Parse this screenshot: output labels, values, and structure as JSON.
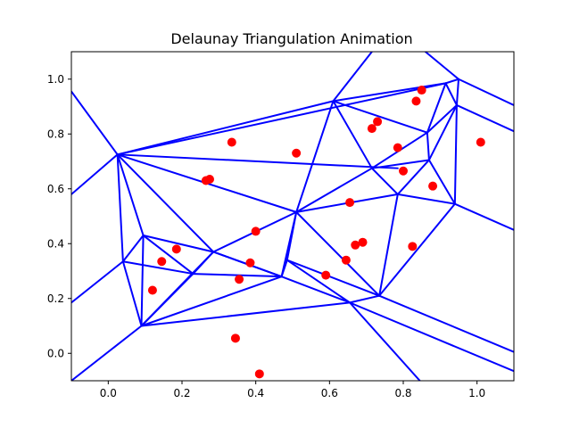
{
  "chart_data": {
    "type": "scatter",
    "title": "Delaunay Triangulation Animation",
    "xlabel": "",
    "ylabel": "",
    "xlim": [
      -0.1,
      1.1
    ],
    "ylim": [
      -0.1,
      1.1
    ],
    "grid": false,
    "xticks": [
      "0.0",
      "0.2",
      "0.4",
      "0.6",
      "0.8",
      "1.0"
    ],
    "xtick_values": [
      0.0,
      0.2,
      0.4,
      0.6,
      0.8,
      1.0
    ],
    "yticks": [
      "0.0",
      "0.2",
      "0.4",
      "0.6",
      "0.8",
      "1.0"
    ],
    "ytick_values": [
      0.0,
      0.2,
      0.4,
      0.6,
      0.8,
      1.0
    ],
    "colors": {
      "points": "#ff0000",
      "edges": "#0000ff"
    },
    "points": [
      [
        0.12,
        0.23
      ],
      [
        0.145,
        0.335
      ],
      [
        0.185,
        0.38
      ],
      [
        0.265,
        0.63
      ],
      [
        0.275,
        0.635
      ],
      [
        0.335,
        0.77
      ],
      [
        0.345,
        0.055
      ],
      [
        0.355,
        0.27
      ],
      [
        0.385,
        0.33
      ],
      [
        0.4,
        0.445
      ],
      [
        0.41,
        -0.075
      ],
      [
        0.51,
        0.73
      ],
      [
        0.59,
        0.285
      ],
      [
        0.645,
        0.34
      ],
      [
        0.655,
        0.55
      ],
      [
        0.67,
        0.395
      ],
      [
        0.69,
        0.405
      ],
      [
        0.715,
        0.82
      ],
      [
        0.73,
        0.845
      ],
      [
        0.785,
        0.75
      ],
      [
        0.8,
        0.665
      ],
      [
        0.825,
        0.39
      ],
      [
        0.835,
        0.92
      ],
      [
        0.85,
        0.96
      ],
      [
        0.88,
        0.61
      ],
      [
        1.01,
        0.77
      ]
    ],
    "edges": [
      [
        [
          0.025,
          0.725
        ],
        [
          0.915,
          0.985
        ]
      ],
      [
        [
          0.915,
          0.985
        ],
        [
          0.95,
          1.0
        ]
      ],
      [
        [
          0.025,
          0.725
        ],
        [
          0.61,
          0.92
        ]
      ],
      [
        [
          0.61,
          0.92
        ],
        [
          0.915,
          0.985
        ]
      ],
      [
        [
          0.025,
          0.725
        ],
        [
          0.51,
          0.515
        ]
      ],
      [
        [
          0.025,
          0.725
        ],
        [
          0.095,
          0.43
        ]
      ],
      [
        [
          0.025,
          0.725
        ],
        [
          0.285,
          0.37
        ]
      ],
      [
        [
          0.025,
          0.725
        ],
        [
          0.04,
          0.335
        ]
      ],
      [
        [
          0.025,
          0.725
        ],
        [
          -0.1,
          0.58
        ]
      ],
      [
        [
          0.025,
          0.725
        ],
        [
          -0.1,
          0.955
        ]
      ],
      [
        [
          0.025,
          0.725
        ],
        [
          0.785,
          0.675
        ]
      ],
      [
        [
          0.61,
          0.92
        ],
        [
          0.51,
          0.515
        ]
      ],
      [
        [
          0.61,
          0.92
        ],
        [
          0.715,
          0.675
        ]
      ],
      [
        [
          0.61,
          0.92
        ],
        [
          0.865,
          0.805
        ]
      ],
      [
        [
          0.915,
          0.985
        ],
        [
          0.865,
          0.805
        ]
      ],
      [
        [
          0.915,
          0.985
        ],
        [
          0.945,
          0.905
        ]
      ],
      [
        [
          0.95,
          1.0
        ],
        [
          0.945,
          0.905
        ]
      ],
      [
        [
          0.95,
          1.0
        ],
        [
          1.1,
          0.905
        ]
      ],
      [
        [
          0.95,
          1.0
        ],
        [
          0.86,
          1.1
        ]
      ],
      [
        [
          0.945,
          0.905
        ],
        [
          1.1,
          0.81
        ]
      ],
      [
        [
          0.945,
          0.905
        ],
        [
          0.865,
          0.805
        ]
      ],
      [
        [
          0.945,
          0.905
        ],
        [
          0.87,
          0.705
        ]
      ],
      [
        [
          0.945,
          0.905
        ],
        [
          0.94,
          0.545
        ]
      ],
      [
        [
          0.865,
          0.805
        ],
        [
          0.715,
          0.675
        ]
      ],
      [
        [
          0.865,
          0.805
        ],
        [
          0.87,
          0.705
        ]
      ],
      [
        [
          0.715,
          0.675
        ],
        [
          0.87,
          0.705
        ]
      ],
      [
        [
          0.715,
          0.675
        ],
        [
          0.785,
          0.58
        ]
      ],
      [
        [
          0.715,
          0.675
        ],
        [
          0.51,
          0.515
        ]
      ],
      [
        [
          0.87,
          0.705
        ],
        [
          0.785,
          0.58
        ]
      ],
      [
        [
          0.87,
          0.705
        ],
        [
          0.94,
          0.545
        ]
      ],
      [
        [
          0.785,
          0.58
        ],
        [
          0.94,
          0.545
        ]
      ],
      [
        [
          0.785,
          0.58
        ],
        [
          0.51,
          0.515
        ]
      ],
      [
        [
          0.785,
          0.58
        ],
        [
          0.735,
          0.21
        ]
      ],
      [
        [
          0.94,
          0.545
        ],
        [
          0.735,
          0.21
        ]
      ],
      [
        [
          0.94,
          0.545
        ],
        [
          1.1,
          0.45
        ]
      ],
      [
        [
          0.51,
          0.515
        ],
        [
          0.735,
          0.21
        ]
      ],
      [
        [
          0.51,
          0.515
        ],
        [
          0.285,
          0.37
        ]
      ],
      [
        [
          0.51,
          0.515
        ],
        [
          0.485,
          0.34
        ]
      ],
      [
        [
          0.51,
          0.515
        ],
        [
          0.47,
          0.28
        ]
      ],
      [
        [
          0.285,
          0.37
        ],
        [
          0.095,
          0.43
        ]
      ],
      [
        [
          0.285,
          0.37
        ],
        [
          0.47,
          0.28
        ]
      ],
      [
        [
          0.285,
          0.37
        ],
        [
          0.23,
          0.29
        ]
      ],
      [
        [
          0.285,
          0.37
        ],
        [
          0.09,
          0.1
        ]
      ],
      [
        [
          0.095,
          0.43
        ],
        [
          0.04,
          0.335
        ]
      ],
      [
        [
          0.095,
          0.43
        ],
        [
          0.23,
          0.29
        ]
      ],
      [
        [
          0.04,
          0.335
        ],
        [
          0.23,
          0.29
        ]
      ],
      [
        [
          0.04,
          0.335
        ],
        [
          0.09,
          0.1
        ]
      ],
      [
        [
          0.04,
          0.335
        ],
        [
          -0.1,
          0.185
        ]
      ],
      [
        [
          0.23,
          0.29
        ],
        [
          0.47,
          0.28
        ]
      ],
      [
        [
          0.23,
          0.29
        ],
        [
          0.09,
          0.1
        ]
      ],
      [
        [
          0.09,
          0.1
        ],
        [
          0.47,
          0.28
        ]
      ],
      [
        [
          0.09,
          0.1
        ],
        [
          0.655,
          0.185
        ]
      ],
      [
        [
          0.09,
          0.1
        ],
        [
          -0.1,
          -0.1
        ]
      ],
      [
        [
          0.47,
          0.28
        ],
        [
          0.485,
          0.34
        ]
      ],
      [
        [
          0.47,
          0.28
        ],
        [
          0.655,
          0.185
        ]
      ],
      [
        [
          0.485,
          0.34
        ],
        [
          0.735,
          0.21
        ]
      ],
      [
        [
          0.485,
          0.34
        ],
        [
          0.655,
          0.185
        ]
      ],
      [
        [
          0.655,
          0.185
        ],
        [
          0.735,
          0.21
        ]
      ],
      [
        [
          0.655,
          0.185
        ],
        [
          1.1,
          -0.065
        ]
      ],
      [
        [
          0.735,
          0.21
        ],
        [
          1.1,
          0.005
        ]
      ],
      [
        [
          0.655,
          0.185
        ],
        [
          0.845,
          -0.1
        ]
      ],
      [
        [
          0.285,
          0.37
        ],
        [
          0.47,
          0.28
        ]
      ],
      [
        [
          0.61,
          0.92
        ],
        [
          0.715,
          1.1
        ]
      ],
      [
        [
          0.095,
          0.43
        ],
        [
          0.09,
          0.1
        ]
      ]
    ]
  }
}
